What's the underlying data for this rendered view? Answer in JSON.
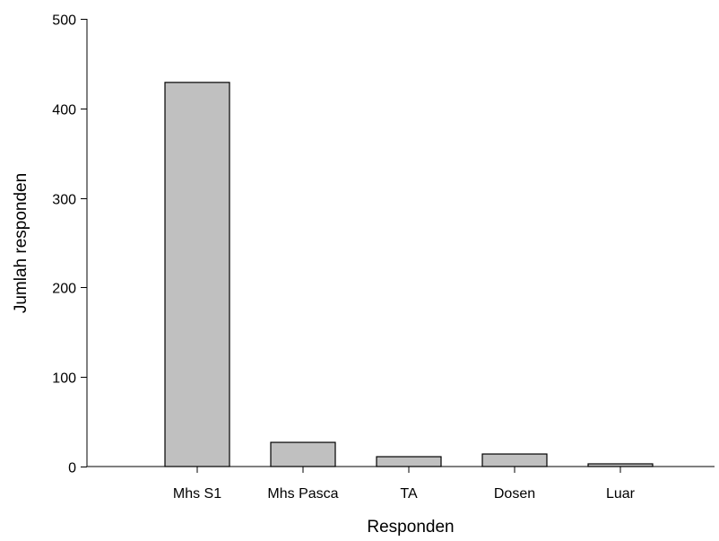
{
  "chart_data": {
    "type": "bar",
    "title": "",
    "xlabel": "Responden",
    "ylabel": "Jumlah responden",
    "categories": [
      "Mhs S1",
      "Mhs Pasca",
      "TA",
      "Dosen",
      "Luar"
    ],
    "values": [
      429,
      27,
      11,
      14,
      3
    ],
    "ylim": [
      0,
      500
    ],
    "yticks": [
      0,
      100,
      200,
      300,
      400,
      500
    ],
    "grid": false,
    "legend": "none",
    "colors": {
      "bar_fill": "#c0c0c0",
      "bar_stroke": "#000000"
    }
  }
}
